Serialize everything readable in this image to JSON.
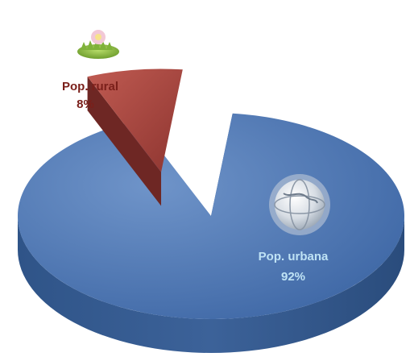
{
  "chart_data": {
    "type": "pie",
    "style": "3d-exploded",
    "slices": [
      {
        "label": "Pop. rural",
        "value_label": "8%",
        "value": 8,
        "color": "#a5413c",
        "icon": "grass-flower-icon"
      },
      {
        "label": "Pop. urbana",
        "value_label": "92%",
        "value": 92,
        "color": "#4a74b0",
        "icon": "globe-icon"
      }
    ],
    "title": "",
    "legend": "none"
  }
}
